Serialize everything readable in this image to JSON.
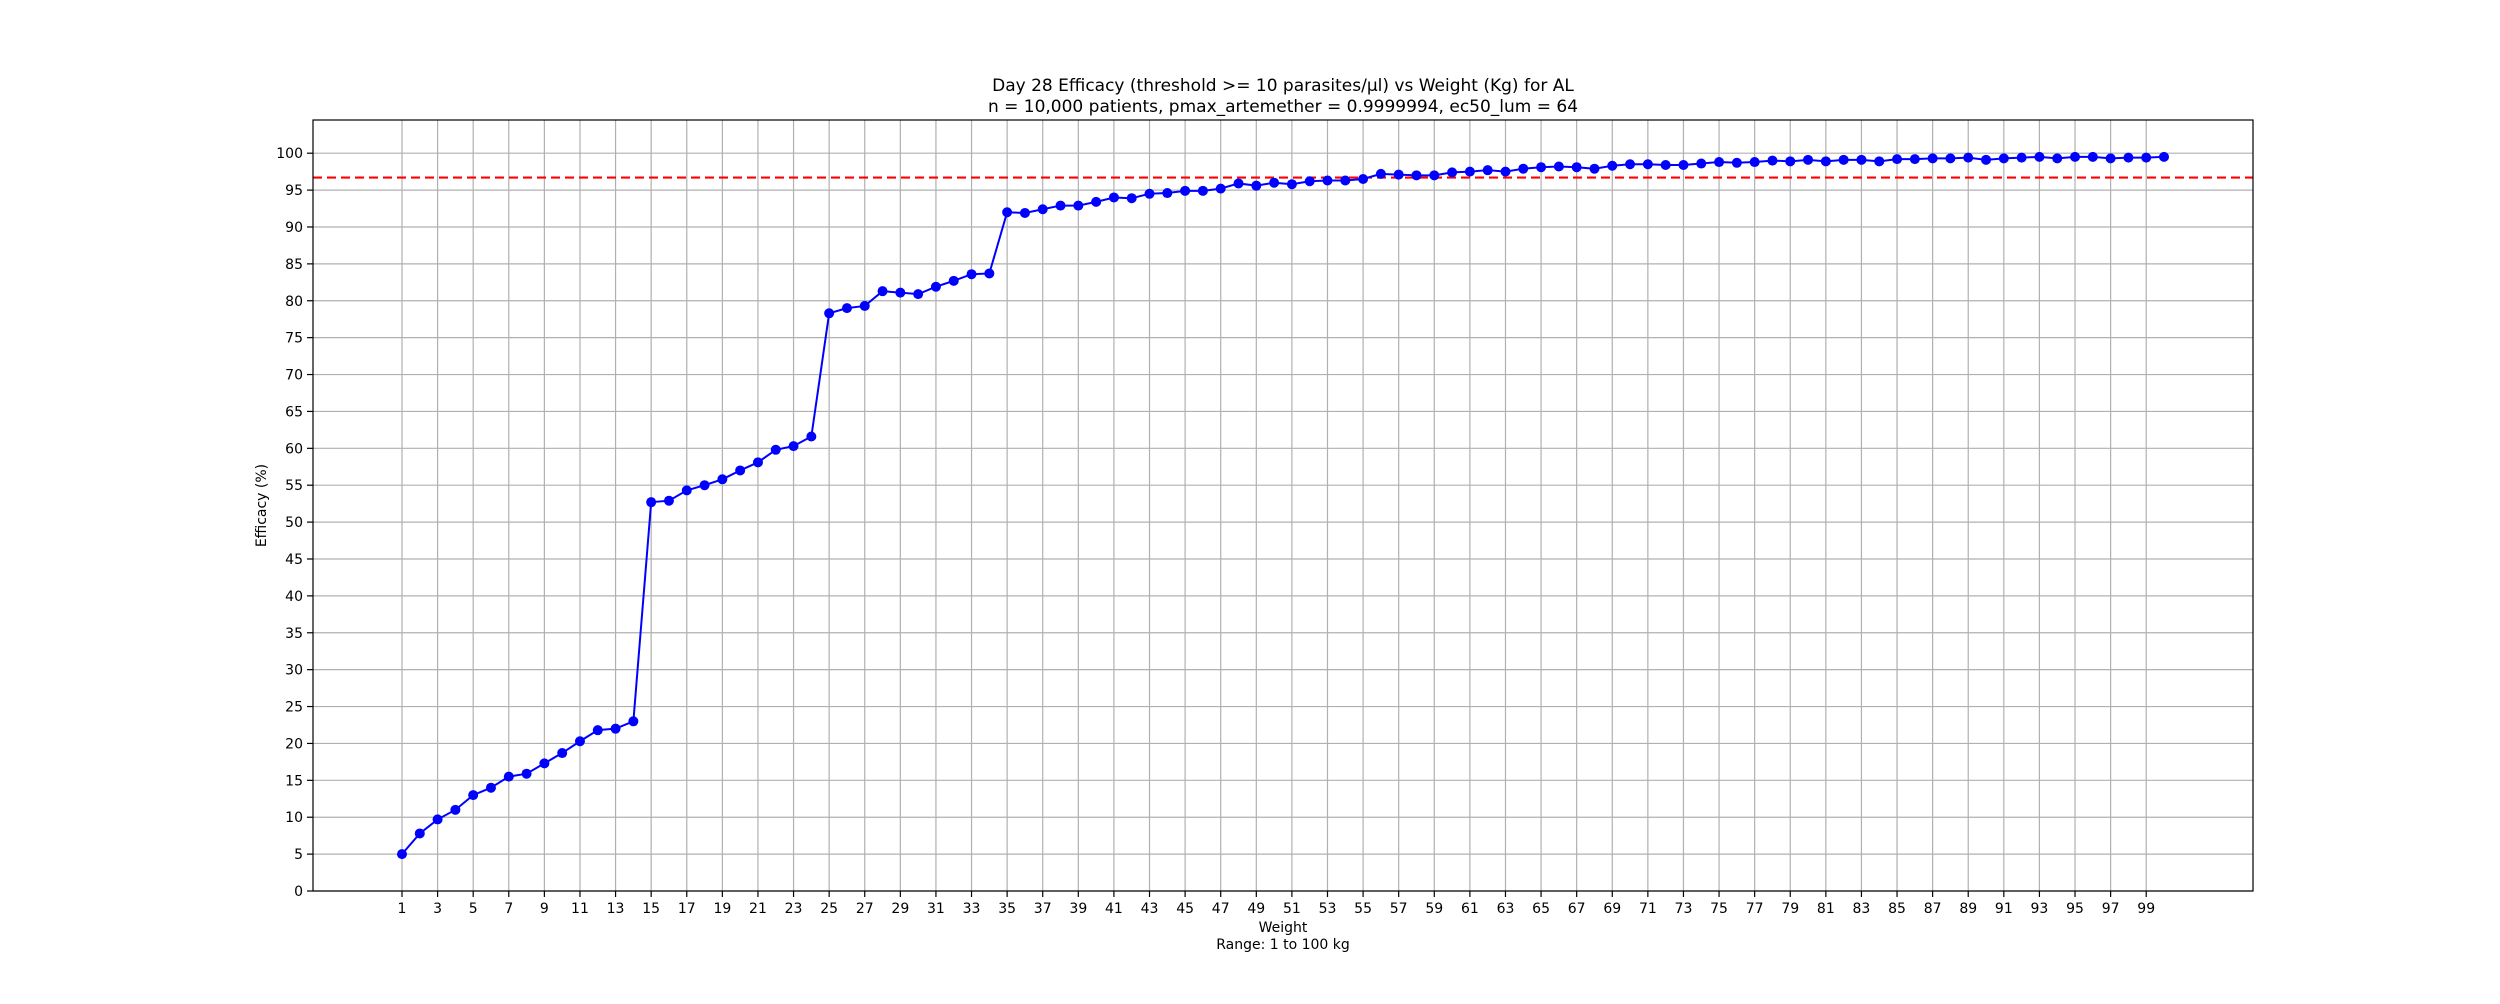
{
  "chart_data": {
    "type": "line",
    "title": "Day 28 Efficacy (threshold >= 10 parasites/μl) vs Weight (Kg) for AL",
    "subtitle": "n = 10,000 patients, pmax_artemether = 0.9999994, ec50_lum = 64",
    "xlabel": "Weight",
    "xlabel_secondary": "Range: 1 to 100 kg",
    "ylabel": "Efficacy (%)",
    "xlim": [
      -4,
      105
    ],
    "ylim": [
      0,
      104.5
    ],
    "xticks": [
      1,
      3,
      5,
      7,
      9,
      11,
      13,
      15,
      17,
      19,
      21,
      23,
      25,
      27,
      29,
      31,
      33,
      35,
      37,
      39,
      41,
      43,
      45,
      47,
      49,
      51,
      53,
      55,
      57,
      59,
      61,
      63,
      65,
      67,
      69,
      71,
      73,
      75,
      77,
      79,
      81,
      83,
      85,
      87,
      89,
      91,
      93,
      95,
      97,
      99
    ],
    "yticks": [
      0,
      5,
      10,
      15,
      20,
      25,
      30,
      35,
      40,
      45,
      50,
      55,
      60,
      65,
      70,
      75,
      80,
      85,
      90,
      95,
      100
    ],
    "grid": true,
    "reference_line": {
      "y": 96.7,
      "style": "dashed",
      "color": "#ff0000"
    },
    "series_color": "#0000ff",
    "series": [
      {
        "x": [
          1,
          2,
          3,
          4,
          5,
          6,
          7,
          8,
          9,
          10,
          11,
          12,
          13,
          14,
          15,
          16,
          17,
          18,
          19,
          20,
          21,
          22,
          23,
          24,
          25,
          26,
          27,
          28,
          29,
          30,
          31,
          32,
          33,
          34,
          35,
          36,
          37,
          38,
          39,
          40,
          41,
          42,
          43,
          44,
          45,
          46,
          47,
          48,
          49,
          50,
          51,
          52,
          53,
          54,
          55,
          56,
          57,
          58,
          59,
          60,
          61,
          62,
          63,
          64,
          65,
          66,
          67,
          68,
          69,
          70,
          71,
          72,
          73,
          74,
          75,
          76,
          77,
          78,
          79,
          80,
          81,
          82,
          83,
          84,
          85,
          86,
          87,
          88,
          89,
          90,
          91,
          92,
          93,
          94,
          95,
          96,
          97,
          98,
          99,
          100
        ],
        "values": [
          5.0,
          7.8,
          9.7,
          11.0,
          13.0,
          14.0,
          15.5,
          15.9,
          17.3,
          18.7,
          20.3,
          21.8,
          22.0,
          23.0,
          52.7,
          52.9,
          54.3,
          55.0,
          55.8,
          57.0,
          58.1,
          59.8,
          60.3,
          61.6,
          78.3,
          79.0,
          79.3,
          81.3,
          81.1,
          80.9,
          81.9,
          82.7,
          83.6,
          83.7,
          92.0,
          91.9,
          92.4,
          92.9,
          92.9,
          93.4,
          94.0,
          93.9,
          94.5,
          94.6,
          94.9,
          94.9,
          95.2,
          95.9,
          95.6,
          96.0,
          95.8,
          96.2,
          96.3,
          96.3,
          96.5,
          97.2,
          97.1,
          97.0,
          97.0,
          97.4,
          97.5,
          97.7,
          97.5,
          97.9,
          98.1,
          98.2,
          98.1,
          97.9,
          98.3,
          98.5,
          98.5,
          98.4,
          98.4,
          98.6,
          98.8,
          98.7,
          98.8,
          99.0,
          98.9,
          99.1,
          98.9,
          99.1,
          99.1,
          98.9,
          99.2,
          99.2,
          99.3,
          99.3,
          99.4,
          99.1,
          99.3,
          99.4,
          99.5,
          99.3,
          99.5,
          99.5,
          99.3,
          99.4,
          99.4,
          99.5
        ]
      }
    ]
  }
}
